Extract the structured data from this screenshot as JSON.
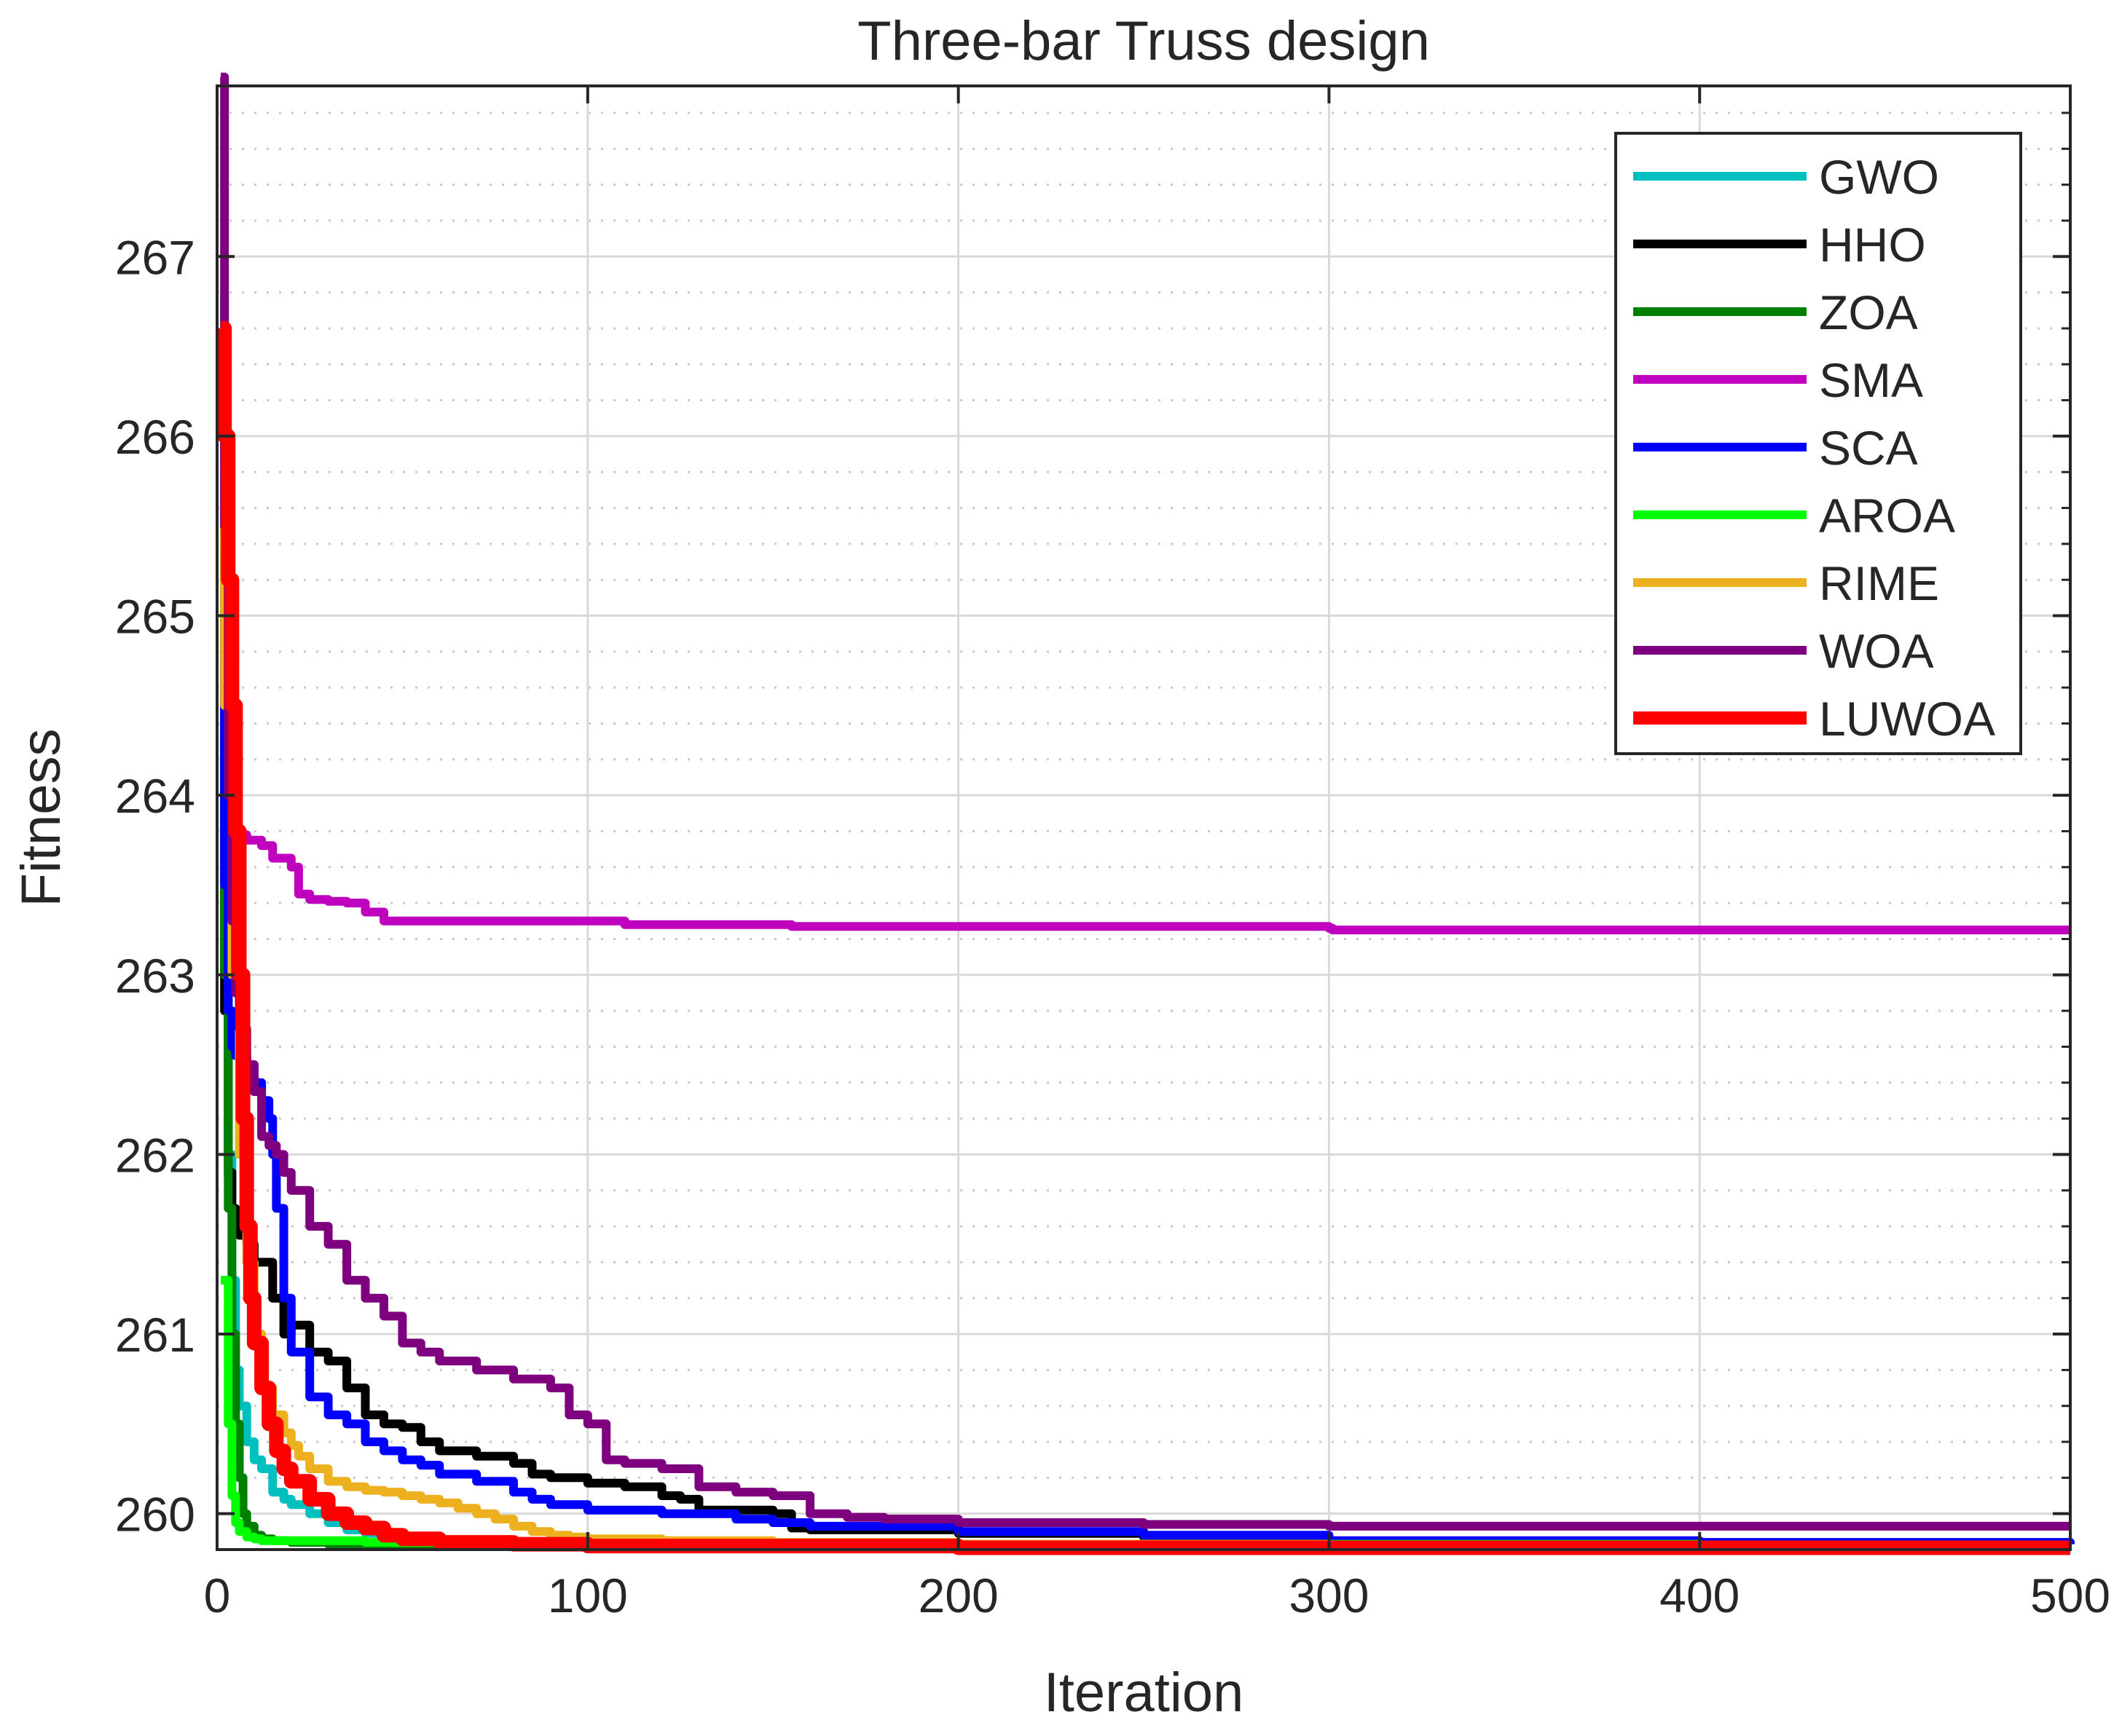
{
  "chart_data": {
    "type": "line",
    "title": "Three-bar Truss design",
    "xlabel": "Iteration",
    "ylabel": "Fitness",
    "xlim": [
      0,
      500
    ],
    "ylim": [
      259.8,
      267.95
    ],
    "xticks": [
      0,
      100,
      200,
      300,
      400,
      500
    ],
    "yticks": [
      260,
      261,
      262,
      263,
      264,
      265,
      266,
      267
    ],
    "grid": "on",
    "minor_grid": "dotted",
    "legend_position": "top-right",
    "series": [
      {
        "name": "GWO",
        "color": "#00BFBF",
        "x": [
          1,
          2,
          3,
          4,
          5,
          6,
          8,
          10,
          12,
          15,
          18,
          20,
          25,
          30,
          35,
          40,
          50,
          60,
          80,
          100,
          150,
          200,
          300,
          400,
          500
        ],
        "y": [
          266.8,
          263.8,
          262.0,
          261.3,
          260.8,
          260.6,
          260.4,
          260.3,
          260.25,
          260.12,
          260.08,
          260.05,
          260.0,
          259.95,
          259.91,
          259.89,
          259.86,
          259.85,
          259.83,
          259.82,
          259.82,
          259.81,
          259.81,
          259.81,
          259.81
        ]
      },
      {
        "name": "HHO",
        "color": "#000000",
        "x": [
          1,
          2,
          3,
          4,
          5,
          6,
          8,
          10,
          15,
          18,
          20,
          25,
          30,
          35,
          40,
          45,
          50,
          55,
          60,
          70,
          80,
          85,
          90,
          100,
          110,
          120,
          125,
          130,
          150,
          155,
          160,
          200,
          250,
          290,
          300,
          400,
          500
        ],
        "y": [
          264.5,
          262.8,
          261.9,
          261.7,
          261.6,
          261.55,
          261.5,
          261.4,
          261.2,
          261.0,
          261.05,
          260.9,
          260.85,
          260.7,
          260.55,
          260.5,
          260.48,
          260.4,
          260.35,
          260.32,
          260.28,
          260.22,
          260.2,
          260.17,
          260.15,
          260.1,
          260.08,
          260.02,
          260.0,
          259.92,
          259.91,
          259.89,
          259.87,
          259.85,
          259.84,
          259.83,
          259.83
        ]
      },
      {
        "name": "ZOA",
        "color": "#008000",
        "x": [
          1,
          2,
          3,
          4,
          5,
          6,
          7,
          8,
          10,
          12,
          15,
          20,
          30,
          40,
          60,
          100,
          200,
          300,
          400,
          500
        ],
        "y": [
          265.5,
          263.0,
          261.7,
          261.0,
          260.5,
          260.2,
          260.0,
          259.93,
          259.88,
          259.86,
          259.85,
          259.84,
          259.83,
          259.83,
          259.82,
          259.82,
          259.82,
          259.82,
          259.82,
          259.82
        ]
      },
      {
        "name": "SMA",
        "color": "#BF00BF",
        "x": [
          1,
          2,
          3,
          4,
          5,
          6,
          8,
          10,
          12,
          15,
          20,
          22,
          25,
          30,
          35,
          40,
          45,
          50,
          80,
          100,
          110,
          150,
          155,
          200,
          250,
          300,
          301,
          350,
          400,
          450,
          500
        ],
        "y": [
          264.8,
          264.3,
          264.0,
          263.85,
          263.8,
          263.78,
          263.75,
          263.75,
          263.72,
          263.65,
          263.6,
          263.45,
          263.42,
          263.41,
          263.4,
          263.35,
          263.3,
          263.3,
          263.3,
          263.3,
          263.28,
          263.28,
          263.27,
          263.27,
          263.27,
          263.26,
          263.25,
          263.25,
          263.25,
          263.25,
          263.25
        ]
      },
      {
        "name": "SCA",
        "color": "#0000FF",
        "x": [
          1,
          2,
          3,
          4,
          5,
          8,
          10,
          12,
          14,
          15,
          16,
          18,
          20,
          25,
          30,
          35,
          40,
          45,
          50,
          55,
          60,
          70,
          80,
          85,
          90,
          100,
          120,
          140,
          150,
          160,
          200,
          250,
          300,
          400,
          500
        ],
        "y": [
          265.0,
          263.5,
          262.8,
          262.6,
          262.55,
          262.5,
          262.4,
          262.3,
          262.2,
          262.0,
          261.7,
          261.2,
          260.9,
          260.65,
          260.55,
          260.5,
          260.4,
          260.35,
          260.3,
          260.27,
          260.22,
          260.18,
          260.12,
          260.08,
          260.05,
          260.02,
          260.0,
          259.97,
          259.95,
          259.93,
          259.9,
          259.88,
          259.85,
          259.84,
          259.83
        ]
      },
      {
        "name": "AROA",
        "color": "#00FF00",
        "x": [
          1,
          2,
          3,
          4,
          5,
          6,
          8,
          10,
          12,
          15,
          20,
          30,
          40,
          60,
          100,
          200,
          300,
          400,
          500
        ],
        "y": [
          261.3,
          261.3,
          260.5,
          260.1,
          259.95,
          259.9,
          259.87,
          259.86,
          259.85,
          259.85,
          259.85,
          259.85,
          259.84,
          259.83,
          259.83,
          259.83,
          259.83,
          259.82,
          259.82
        ]
      },
      {
        "name": "RIME",
        "color": "#EDB120",
        "x": [
          1,
          2,
          4,
          6,
          8,
          10,
          12,
          15,
          18,
          20,
          22,
          25,
          30,
          35,
          40,
          45,
          50,
          55,
          60,
          65,
          70,
          75,
          80,
          85,
          90,
          95,
          100,
          120,
          150,
          200,
          300,
          400,
          500
        ],
        "y": [
          265.5,
          264.5,
          263.0,
          262.0,
          261.4,
          261.0,
          260.7,
          260.55,
          260.45,
          260.38,
          260.32,
          260.25,
          260.18,
          260.15,
          260.13,
          260.12,
          260.1,
          260.08,
          260.06,
          260.03,
          260.0,
          259.97,
          259.93,
          259.9,
          259.88,
          259.87,
          259.86,
          259.85,
          259.84,
          259.83,
          259.82,
          259.82,
          259.82
        ]
      },
      {
        "name": "WOA",
        "color": "#7E007E",
        "x": [
          1,
          2,
          3,
          4,
          5,
          6,
          8,
          10,
          12,
          14,
          16,
          18,
          20,
          25,
          30,
          35,
          40,
          45,
          50,
          55,
          60,
          70,
          80,
          90,
          95,
          100,
          105,
          110,
          120,
          130,
          140,
          150,
          160,
          170,
          180,
          200,
          250,
          300,
          400,
          500
        ],
        "y": [
          268.0,
          265.5,
          264.0,
          263.3,
          262.9,
          262.7,
          262.5,
          262.35,
          262.1,
          262.05,
          262.0,
          261.9,
          261.8,
          261.6,
          261.5,
          261.3,
          261.2,
          261.1,
          260.95,
          260.9,
          260.85,
          260.8,
          260.75,
          260.7,
          260.55,
          260.5,
          260.3,
          260.28,
          260.25,
          260.15,
          260.12,
          260.1,
          260.0,
          259.98,
          259.97,
          259.95,
          259.94,
          259.93,
          259.93,
          259.93
        ]
      },
      {
        "name": "LUWOA",
        "color": "#FF0000",
        "x": [
          1,
          2,
          3,
          4,
          5,
          6,
          7,
          8,
          9,
          10,
          12,
          14,
          16,
          18,
          20,
          25,
          30,
          35,
          40,
          45,
          50,
          60,
          80,
          100,
          200,
          300,
          400,
          500
        ],
        "y": [
          266.6,
          266.0,
          265.2,
          264.5,
          263.8,
          263.0,
          262.2,
          261.6,
          261.2,
          260.95,
          260.7,
          260.5,
          260.35,
          260.25,
          260.18,
          260.08,
          260.0,
          259.95,
          259.92,
          259.88,
          259.86,
          259.84,
          259.83,
          259.82,
          259.81,
          259.81,
          259.81,
          259.81
        ]
      }
    ]
  }
}
